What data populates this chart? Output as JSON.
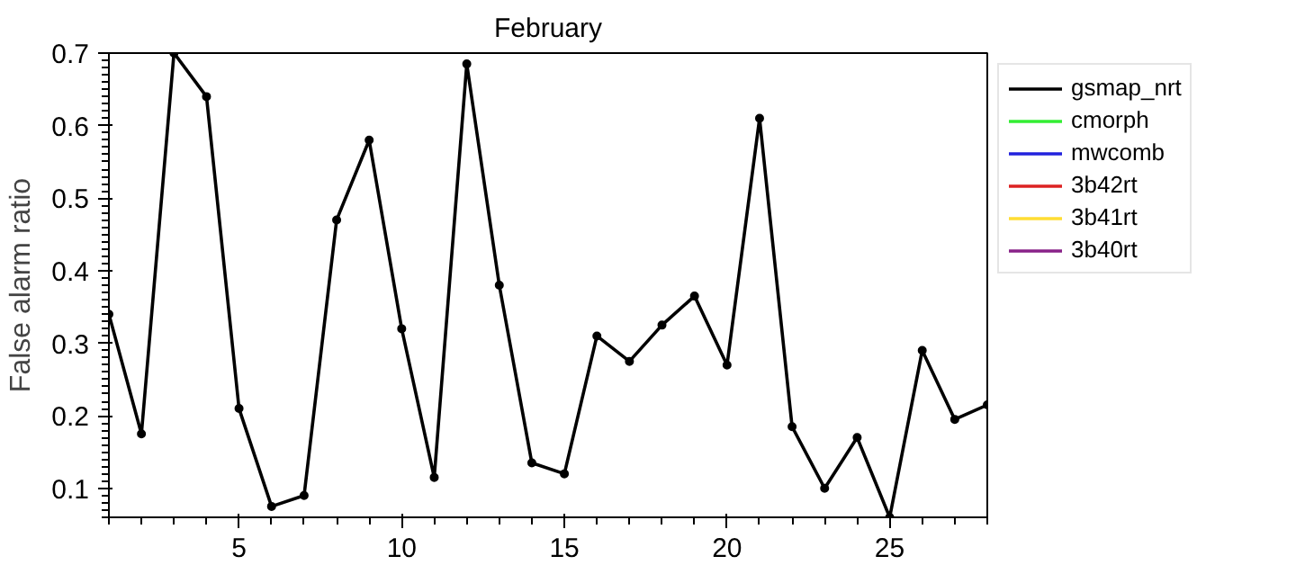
{
  "chart_data": {
    "type": "line",
    "title": "February",
    "ylabel": "False alarm ratio",
    "x": [
      1,
      2,
      3,
      4,
      5,
      6,
      7,
      8,
      9,
      10,
      11,
      12,
      13,
      14,
      15,
      16,
      17,
      18,
      19,
      20,
      21,
      22,
      23,
      24,
      25,
      26,
      27,
      28
    ],
    "series": [
      {
        "name": "gsmap_nrt",
        "color": "#000000",
        "values": [
          0.34,
          0.175,
          0.7,
          0.64,
          0.21,
          0.075,
          0.09,
          0.47,
          0.58,
          0.32,
          0.115,
          0.685,
          0.38,
          0.135,
          0.12,
          0.31,
          0.275,
          0.325,
          0.365,
          0.27,
          0.61,
          0.185,
          0.1,
          0.17,
          0.06,
          0.29,
          0.195,
          0.215
        ]
      },
      {
        "name": "cmorph",
        "color": "#33ee33",
        "values": [
          null,
          null,
          null,
          null,
          null,
          null,
          null,
          null,
          null,
          null,
          null,
          null,
          null,
          null,
          null,
          null,
          null,
          null,
          null,
          null,
          null,
          null,
          null,
          null,
          null,
          null,
          null,
          null
        ]
      },
      {
        "name": "mwcomb",
        "color": "#2222dd",
        "values": [
          null,
          null,
          null,
          null,
          null,
          null,
          null,
          null,
          null,
          null,
          null,
          null,
          null,
          null,
          null,
          null,
          null,
          null,
          null,
          null,
          null,
          null,
          null,
          null,
          null,
          null,
          null,
          null
        ]
      },
      {
        "name": "3b42rt",
        "color": "#dd2222",
        "values": [
          null,
          null,
          null,
          null,
          null,
          null,
          null,
          null,
          null,
          null,
          null,
          null,
          null,
          null,
          null,
          null,
          null,
          null,
          null,
          null,
          null,
          null,
          null,
          null,
          null,
          null,
          null,
          null
        ]
      },
      {
        "name": "3b41rt",
        "color": "#ffdd33",
        "values": [
          null,
          null,
          null,
          null,
          null,
          null,
          null,
          null,
          null,
          null,
          null,
          null,
          null,
          null,
          null,
          null,
          null,
          null,
          null,
          null,
          null,
          null,
          null,
          null,
          null,
          null,
          null,
          null
        ]
      },
      {
        "name": "3b40rt",
        "color": "#882288",
        "values": [
          null,
          null,
          null,
          null,
          null,
          null,
          null,
          null,
          null,
          null,
          null,
          null,
          null,
          null,
          null,
          null,
          null,
          null,
          null,
          null,
          null,
          null,
          null,
          null,
          null,
          null,
          null,
          null
        ]
      }
    ],
    "xlim": [
      1,
      28
    ],
    "ylim": [
      0.06,
      0.7
    ],
    "xticks": [
      5,
      10,
      15,
      20,
      25
    ],
    "yticks": [
      0.1,
      0.2,
      0.3,
      0.4,
      0.5,
      0.6,
      0.7
    ],
    "legend": "right",
    "marker": "circle",
    "grid": false
  }
}
